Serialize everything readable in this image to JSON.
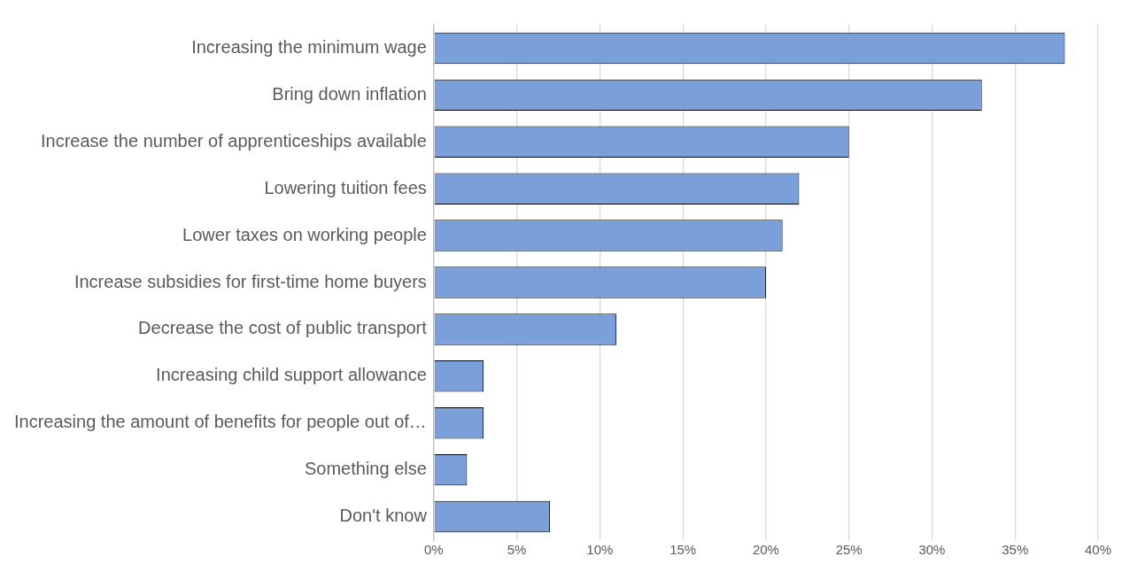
{
  "chart_data": {
    "type": "bar",
    "orientation": "horizontal",
    "categories": [
      "Increasing the minimum wage",
      "Bring down inflation",
      "Increase the number of apprenticeships available",
      "Lowering tuition fees",
      "Lower taxes on working people",
      "Increase subsidies for first-time home buyers",
      "Decrease the cost of public transport",
      "Increasing child support allowance",
      "Increasing the amount of benefits for people out of…",
      "Something else",
      "Don't know"
    ],
    "values": [
      38,
      33,
      25,
      22,
      21,
      20,
      11,
      3,
      3,
      2,
      7
    ],
    "color": "#7b9fd9",
    "xlim": [
      0,
      40
    ],
    "xticks": [
      {
        "value": 0,
        "label": "0%"
      },
      {
        "value": 5,
        "label": "5%"
      },
      {
        "value": 10,
        "label": "10%"
      },
      {
        "value": 15,
        "label": "15%"
      },
      {
        "value": 20,
        "label": "20%"
      },
      {
        "value": 25,
        "label": "25%"
      },
      {
        "value": 30,
        "label": "30%"
      },
      {
        "value": 35,
        "label": "35%"
      },
      {
        "value": 40,
        "label": "40%"
      }
    ],
    "grid": "x",
    "legend": false
  }
}
